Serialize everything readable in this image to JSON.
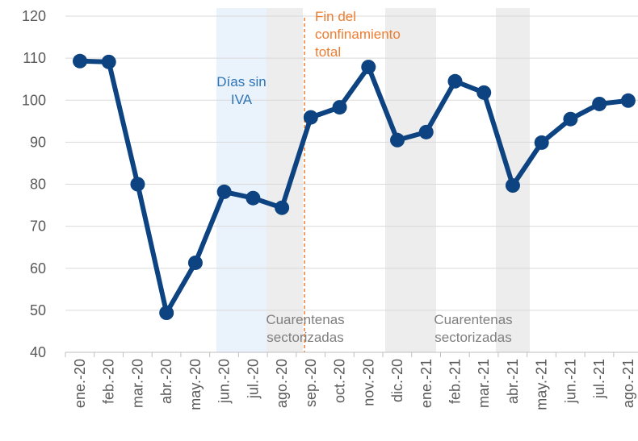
{
  "chart_data": {
    "type": "line",
    "categories": [
      "ene.-20",
      "feb.-20",
      "mar.-20",
      "abr.-20",
      "may.-20",
      "jun.-20",
      "jul.-20",
      "ago.-20",
      "sep.-20",
      "oct.-20",
      "nov.-20",
      "dic.-20",
      "ene.-21",
      "feb.-21",
      "mar.-21",
      "abr.-21",
      "may.-21",
      "jun.-21",
      "jul.-21",
      "ago.-21"
    ],
    "values": [
      109.3,
      109.1,
      80,
      49.4,
      61.3,
      78.2,
      76.7,
      74.4,
      95.9,
      98.3,
      107.9,
      90.5,
      92.4,
      104.5,
      101.8,
      79.7,
      89.9,
      95.5,
      99.1,
      99.9
    ],
    "color": "#0d4380",
    "ylim": [
      40,
      120
    ],
    "yticks": [
      40,
      50,
      60,
      70,
      80,
      90,
      100,
      110,
      120
    ],
    "grid": true,
    "annotations": [
      {
        "lines": [
          "Días sin",
          "IVA"
        ],
        "color": "#2e75b6"
      },
      {
        "lines": [
          "Fin del",
          "confinamiento",
          "total"
        ],
        "color": "#ed7d31"
      },
      {
        "lines": [
          "Cuarentenas",
          "sectorizadas"
        ],
        "color": "#7f7f7f"
      },
      {
        "lines": [
          "Cuarentenas",
          "sectorizadas"
        ],
        "color": "#7f7f7f"
      }
    ]
  }
}
